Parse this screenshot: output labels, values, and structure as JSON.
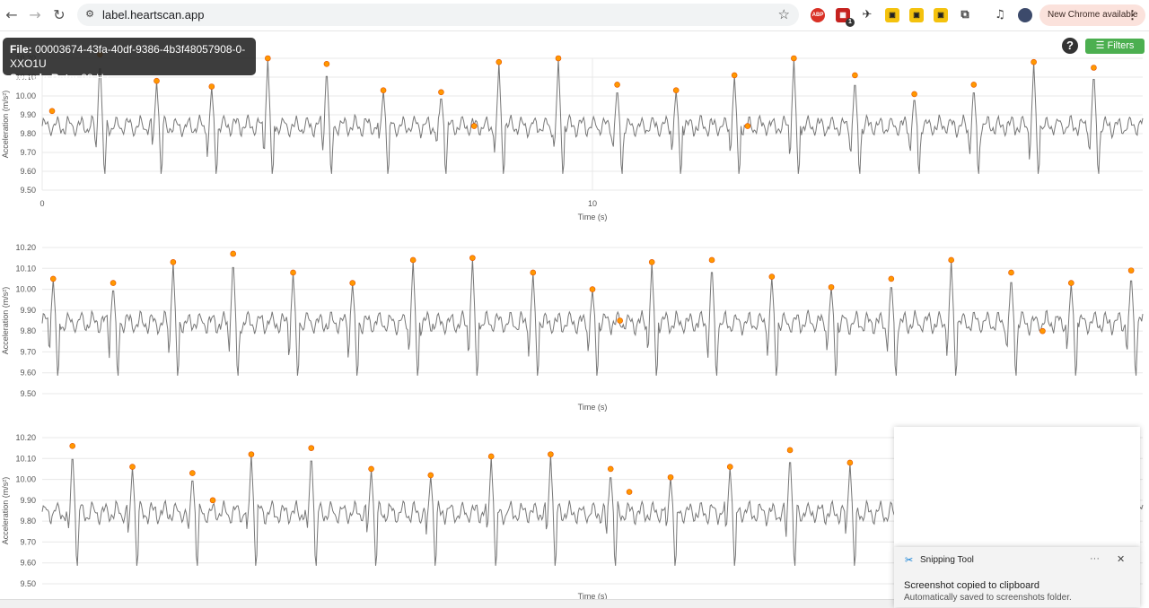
{
  "browser": {
    "url": "label.heartscan.app",
    "update_label": "New Chrome available",
    "extensions": [
      "abp-icon",
      "calendar-icon",
      "plane-icon",
      "extension-icon",
      "extension-icon",
      "extension-icon",
      "puzzle-icon",
      "media-icon"
    ],
    "cal_badge": "1"
  },
  "file_tooltip": {
    "file_label": "File:",
    "file_value": "00003674-43fa-40df-9386-4b3f48057908-0-XXO1U",
    "rate_label": "Sample Rate:",
    "rate_value": "99 Hz"
  },
  "toolbar": {
    "help_label": "?",
    "filters_label": "☰ Filters",
    "accent_color": "#4caf50"
  },
  "chart_data": [
    {
      "type": "line",
      "ylabel": "Acceleration (m/s²)",
      "xlabel": "Time (s)",
      "ylim": [
        9.5,
        10.2
      ],
      "yticks": [
        "9.50",
        "9.60",
        "9.70",
        "9.80",
        "9.90",
        "10.00",
        "10.10",
        "10.20"
      ],
      "xticks": [
        {
          "value": 0,
          "label": "0"
        },
        {
          "value": 10,
          "label": "10"
        }
      ],
      "xlim": [
        0,
        20
      ],
      "grid": true,
      "peaks": [
        [
          0.18,
          9.92
        ],
        [
          1.05,
          10.22
        ],
        [
          2.08,
          10.08
        ],
        [
          3.08,
          10.05
        ],
        [
          4.1,
          10.2
        ],
        [
          5.17,
          10.17
        ],
        [
          6.2,
          10.03
        ],
        [
          7.25,
          10.02
        ],
        [
          7.85,
          9.84
        ],
        [
          8.3,
          10.18
        ],
        [
          9.38,
          10.2
        ],
        [
          10.45,
          10.06
        ],
        [
          11.52,
          10.03
        ],
        [
          12.58,
          10.11
        ],
        [
          12.82,
          9.84
        ],
        [
          13.66,
          10.2
        ],
        [
          14.77,
          10.11
        ],
        [
          15.85,
          10.01
        ],
        [
          16.93,
          10.06
        ],
        [
          18.02,
          10.18
        ],
        [
          19.11,
          10.15
        ]
      ],
      "peak_color": "#ff9800"
    },
    {
      "type": "line",
      "ylabel": "Acceleration (m/s²)",
      "xlabel": "Time (s)",
      "ylim": [
        9.5,
        10.2
      ],
      "yticks": [
        "9.50",
        "9.60",
        "9.70",
        "9.80",
        "9.90",
        "10.00",
        "10.10",
        "10.20"
      ],
      "xticks": [],
      "xlim": [
        0,
        20
      ],
      "grid": true,
      "peaks": [
        [
          0.2,
          10.05
        ],
        [
          1.29,
          10.03
        ],
        [
          2.38,
          10.13
        ],
        [
          3.47,
          10.17
        ],
        [
          4.56,
          10.08
        ],
        [
          5.64,
          10.03
        ],
        [
          6.74,
          10.14
        ],
        [
          7.82,
          10.15
        ],
        [
          8.92,
          10.08
        ],
        [
          10.0,
          10.0
        ],
        [
          10.5,
          9.85
        ],
        [
          11.08,
          10.13
        ],
        [
          12.17,
          10.14
        ],
        [
          13.26,
          10.06
        ],
        [
          14.34,
          10.01
        ],
        [
          15.43,
          10.05
        ],
        [
          16.52,
          10.14
        ],
        [
          17.61,
          10.08
        ],
        [
          18.18,
          9.8
        ],
        [
          18.7,
          10.03
        ],
        [
          19.79,
          10.09
        ]
      ],
      "peak_color": "#ff9800"
    },
    {
      "type": "line",
      "ylabel": "Acceleration (m/s²)",
      "xlabel": "Time (s)",
      "ylim": [
        9.5,
        10.2
      ],
      "yticks": [
        "9.50",
        "9.60",
        "9.70",
        "9.80",
        "9.90",
        "10.00",
        "10.10",
        "10.20"
      ],
      "xticks": [],
      "xlim": [
        0,
        20
      ],
      "grid": true,
      "peaks": [
        [
          0.55,
          10.16
        ],
        [
          1.64,
          10.06
        ],
        [
          2.73,
          10.03
        ],
        [
          3.1,
          9.9
        ],
        [
          3.8,
          10.12
        ],
        [
          4.89,
          10.15
        ],
        [
          5.98,
          10.05
        ],
        [
          7.06,
          10.02
        ],
        [
          8.16,
          10.11
        ],
        [
          9.24,
          10.12
        ],
        [
          10.33,
          10.05
        ],
        [
          10.67,
          9.94
        ],
        [
          11.42,
          10.01
        ],
        [
          12.5,
          10.06
        ],
        [
          13.59,
          10.14
        ],
        [
          14.68,
          10.08
        ],
        [
          15.77,
          10.0
        ]
      ],
      "peak_color": "#ff9800"
    }
  ],
  "notification": {
    "app_name": "Snipping Tool",
    "more": "···",
    "title": "Screenshot copied to clipboard",
    "body": "Automatically saved to screenshots folder."
  }
}
